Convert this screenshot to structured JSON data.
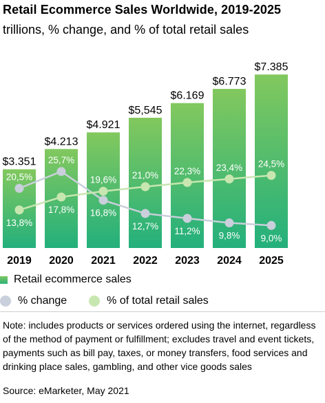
{
  "title": "Retail Ecommerce Sales Worldwide, 2019-2025",
  "subtitle": "trillions, % change, and % of total retail sales",
  "legend": {
    "bar": "Retail ecommerce sales",
    "change": "% change",
    "share": "% of total retail sales"
  },
  "note": "Note: includes products or services ordered using the internet, regardless of the method of payment or fulfillment; excludes travel and event tickets, payments such as bill pay, taxes, or money transfers, food services and drinking place sales, gambling, and other vice goods sales",
  "source": "Source: eMarketer, May 2021",
  "colors": {
    "bar_top": "#82c85e",
    "bar_bottom": "#23b07c",
    "change_line": "#c9cfdb",
    "share_line": "#c8e6b0"
  },
  "chart_data": {
    "type": "bar",
    "categories": [
      "2019",
      "2020",
      "2021",
      "2022",
      "2023",
      "2024",
      "2025"
    ],
    "series": [
      {
        "name": "Retail ecommerce sales",
        "type": "bar",
        "values": [
          3.351,
          4.213,
          4.921,
          5.545,
          6.169,
          6.773,
          7.385
        ],
        "labels": [
          "$3.351",
          "$4.213",
          "$4.921",
          "$5,545",
          "$6.169",
          "$6.773",
          "$7.385"
        ]
      },
      {
        "name": "% change",
        "type": "line",
        "values": [
          20.5,
          25.7,
          16.8,
          12.7,
          11.2,
          9.8,
          9.0
        ],
        "labels": [
          "20,5%",
          "25,7%",
          "16,8%",
          "12,7%",
          "11,2%",
          "9,8%",
          "9,0%"
        ]
      },
      {
        "name": "% of total retail sales",
        "type": "line",
        "values": [
          13.8,
          17.8,
          19.6,
          21.0,
          22.3,
          23.4,
          24.5
        ],
        "labels": [
          "13,8%",
          "17,8%",
          "19,6%",
          "21,0%",
          "22,3%",
          "23,4%",
          "24,5%"
        ]
      }
    ],
    "grid": false,
    "legend_position": "bottom"
  }
}
